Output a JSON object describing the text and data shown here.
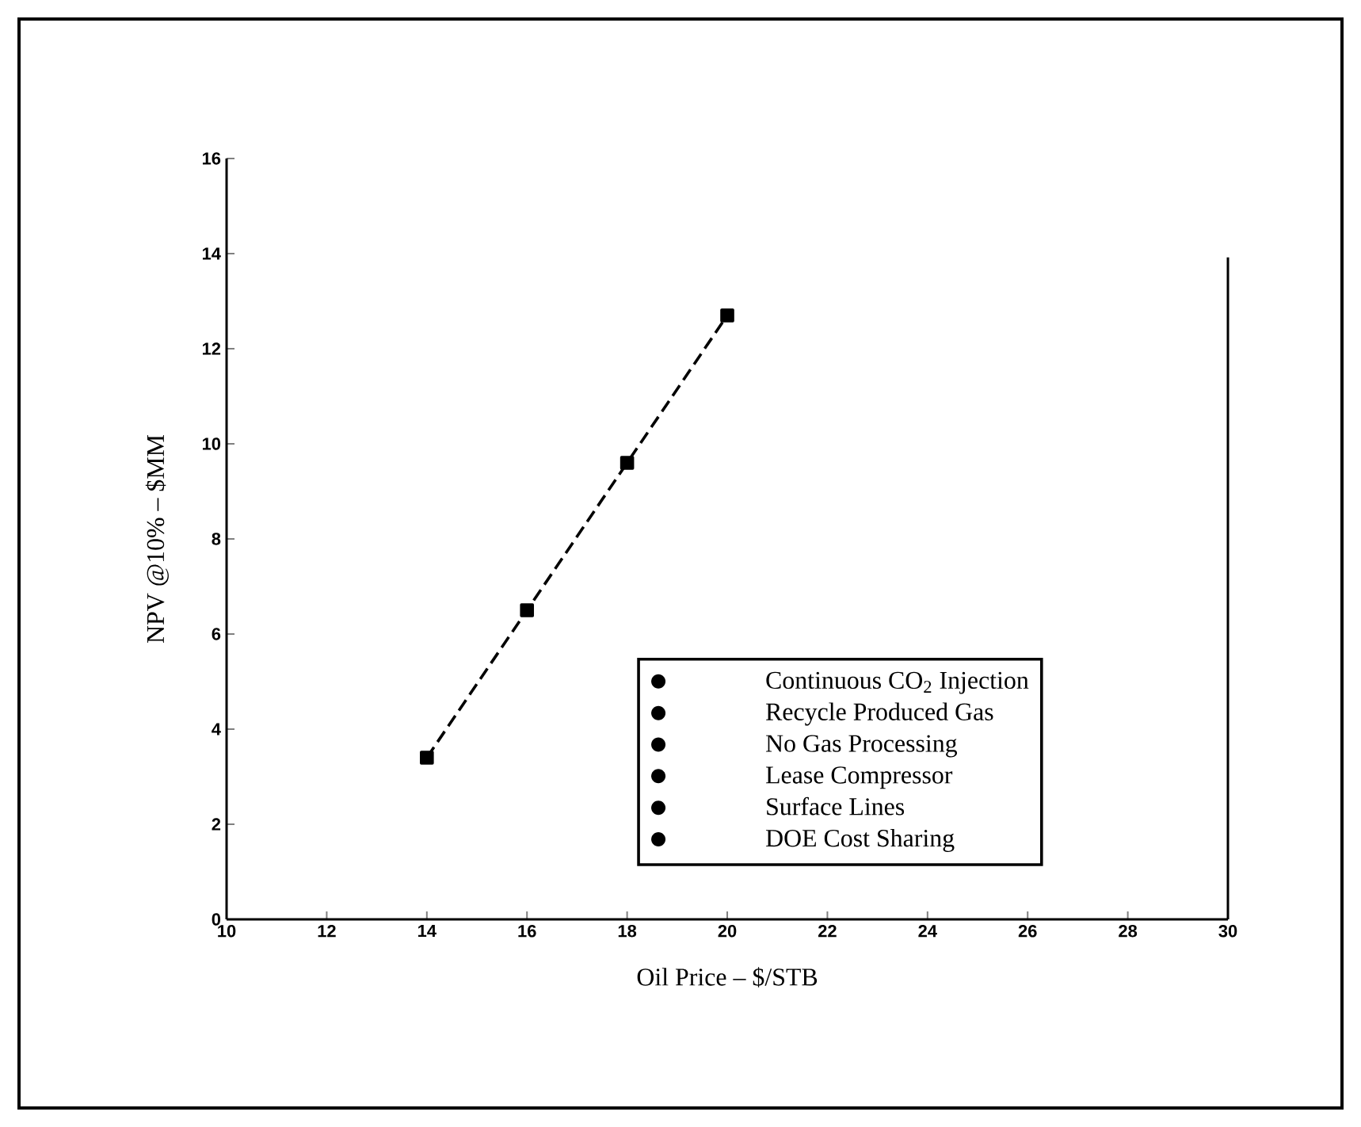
{
  "chart_data": {
    "type": "line",
    "xlabel": "Oil Price – $/STB",
    "ylabel": "NPV @10% – $MM",
    "x": [
      14,
      16,
      18,
      20
    ],
    "series": [
      {
        "color": "#000000",
        "values": [
          3.4,
          6.5,
          9.6,
          12.7
        ]
      }
    ],
    "xlim": [
      10,
      30
    ],
    "xticks": [
      10,
      12,
      14,
      16,
      18,
      20,
      22,
      24,
      26,
      28,
      30
    ],
    "ylim": [
      0,
      16
    ],
    "yticks": [
      0,
      2,
      4,
      6,
      8,
      10,
      12,
      14,
      16
    ],
    "marker": "square",
    "line_style": "dashed",
    "grid": false,
    "annotations": [
      "Continuous CO$_{2}$ Injection",
      "Recycle Produced Gas",
      "No Gas Processing",
      "Lease Compressor",
      "Surface Lines",
      "DOE Cost Sharing"
    ]
  }
}
